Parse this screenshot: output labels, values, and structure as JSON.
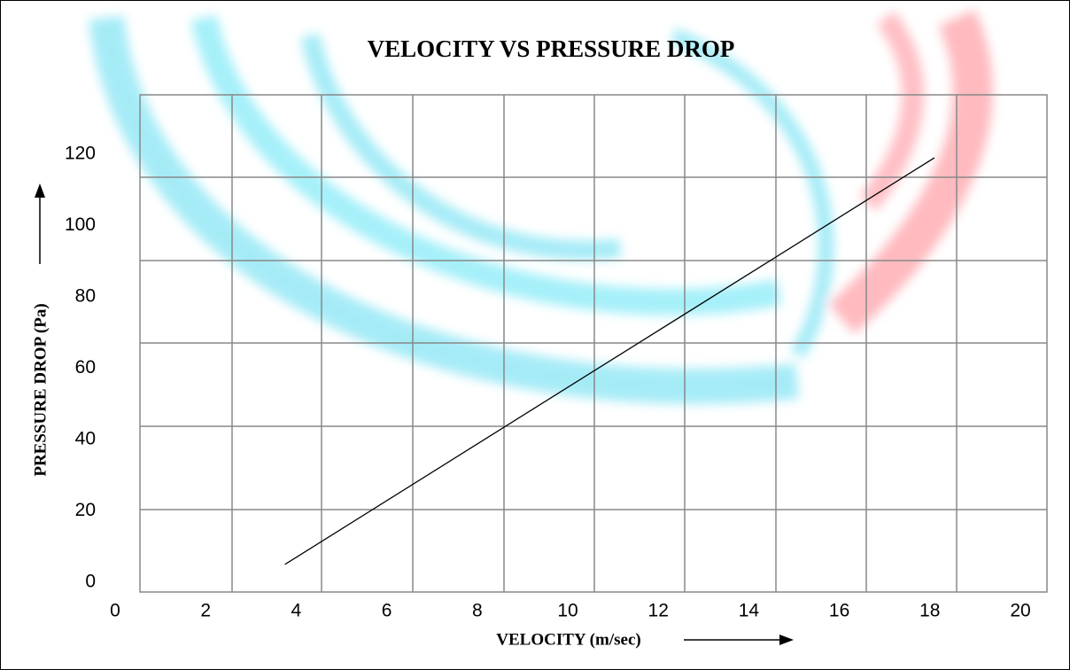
{
  "chart_data": {
    "type": "line",
    "title": "VELOCITY VS PRESSURE DROP",
    "x_label": "VELOCITY (m/sec)",
    "y_label": "PRESSURE DROP (Pa)",
    "x": [
      3.75,
      18.1
    ],
    "series": [
      {
        "color": "#000000",
        "values": [
          5,
          119
        ]
      }
    ],
    "xlim": [
      0,
      20
    ],
    "xticks": [
      0,
      2,
      4,
      6,
      8,
      10,
      12,
      14,
      16,
      18,
      20
    ],
    "ylim": [
      0,
      120
    ],
    "yticks": [
      0,
      20,
      40,
      60,
      80,
      100,
      120
    ]
  }
}
